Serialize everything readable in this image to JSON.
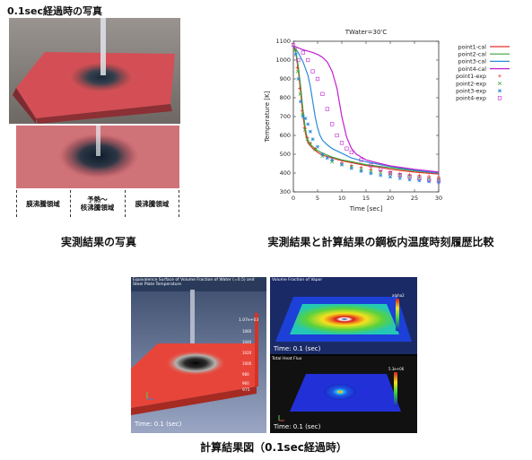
{
  "photo_section": {
    "title": "0.1sec経過時の写真",
    "zones": [
      "膜沸騰領域",
      "予熱～\n核沸騰領域",
      "膜沸騰領域"
    ],
    "caption": "実測結果の写真"
  },
  "chart_section": {
    "caption": "実測結果と計算結果の鋼板内温度時刻履歴比較"
  },
  "chart_data": {
    "type": "line",
    "title": "TWater=30'C",
    "xlabel": "Time [sec]",
    "ylabel": "Temperature [K]",
    "xlim": [
      0,
      30
    ],
    "ylim": [
      300,
      1100
    ],
    "xticks": [
      0,
      5,
      10,
      15,
      20,
      25,
      30
    ],
    "yticks": [
      300,
      400,
      500,
      600,
      700,
      800,
      900,
      1000,
      1100
    ],
    "grid": false,
    "legend_position": "top-right",
    "series": [
      {
        "name": "point1-cal",
        "kind": "line",
        "color": "#e8302a",
        "x": [
          0,
          0.5,
          1,
          1.5,
          2,
          2.5,
          3,
          4,
          5,
          6,
          8,
          10,
          12,
          15,
          18,
          20,
          25,
          30
        ],
        "y": [
          1075,
          1040,
          950,
          830,
          700,
          610,
          560,
          530,
          510,
          495,
          480,
          465,
          455,
          440,
          430,
          420,
          405,
          395
        ]
      },
      {
        "name": "point2-cal",
        "kind": "line",
        "color": "#3aa23a",
        "x": [
          0,
          0.5,
          1,
          1.5,
          2,
          2.5,
          3,
          4,
          5,
          6,
          8,
          10,
          12,
          15,
          18,
          20,
          25,
          30
        ],
        "y": [
          1075,
          1045,
          970,
          860,
          730,
          630,
          570,
          540,
          520,
          505,
          485,
          470,
          460,
          445,
          435,
          428,
          412,
          400
        ]
      },
      {
        "name": "point3-cal",
        "kind": "line",
        "color": "#2b8ad8",
        "x": [
          0,
          1,
          2,
          3,
          3.5,
          4,
          4.5,
          5,
          5.5,
          6,
          7,
          8,
          10,
          12,
          15,
          18,
          20,
          25,
          30
        ],
        "y": [
          1075,
          1040,
          990,
          920,
          860,
          780,
          700,
          640,
          600,
          575,
          550,
          530,
          505,
          480,
          460,
          445,
          435,
          415,
          400
        ]
      },
      {
        "name": "point4-cal",
        "kind": "line",
        "color": "#c21fd1",
        "x": [
          0,
          1,
          2,
          3,
          4,
          5,
          6,
          7,
          8,
          9,
          10,
          11,
          12,
          13,
          15,
          18,
          20,
          25,
          30
        ],
        "y": [
          1075,
          1065,
          1055,
          1048,
          1040,
          1030,
          1015,
          990,
          940,
          850,
          700,
          590,
          530,
          500,
          470,
          450,
          438,
          420,
          405
        ]
      },
      {
        "name": "point1-exp",
        "kind": "marker",
        "marker": "+",
        "color": "#e8302a",
        "x": [
          0.3,
          0.8,
          1.3,
          1.8,
          2.3,
          2.8,
          3.5,
          4.5,
          6,
          8,
          10,
          12,
          14,
          16,
          18,
          20,
          22,
          24,
          26,
          28,
          30
        ],
        "y": [
          1060,
          960,
          850,
          730,
          640,
          590,
          560,
          530,
          500,
          470,
          455,
          440,
          430,
          420,
          412,
          405,
          398,
          392,
          388,
          383,
          378
        ]
      },
      {
        "name": "point2-exp",
        "kind": "marker",
        "marker": "x",
        "color": "#3aa23a",
        "x": [
          0.4,
          0.9,
          1.4,
          1.9,
          2.4,
          2.9,
          3.5,
          4.5,
          6,
          8,
          10,
          12,
          14,
          16,
          18,
          20,
          22,
          24,
          26,
          28,
          30
        ],
        "y": [
          1055,
          940,
          820,
          710,
          630,
          580,
          555,
          525,
          490,
          460,
          445,
          432,
          420,
          410,
          402,
          395,
          388,
          382,
          376,
          370,
          366
        ]
      },
      {
        "name": "point3-exp",
        "kind": "marker",
        "marker": "star",
        "color": "#2b8ad8",
        "x": [
          0.5,
          1,
          1.5,
          2,
          2.5,
          3,
          3.5,
          4,
          5,
          6,
          7,
          8,
          10,
          12,
          14,
          16,
          18,
          20,
          22,
          24,
          26,
          28,
          30
        ],
        "y": [
          1030,
          900,
          780,
          700,
          690,
          660,
          620,
          580,
          540,
          500,
          480,
          470,
          445,
          425,
          410,
          398,
          388,
          380,
          372,
          365,
          360,
          355,
          350
        ]
      },
      {
        "name": "point4-exp",
        "kind": "marker",
        "marker": "square",
        "color": "#c21fd1",
        "x": [
          0,
          1,
          2,
          3,
          4,
          5,
          6,
          7,
          8,
          9,
          10,
          11,
          12,
          14,
          16,
          18,
          20,
          22,
          24,
          26,
          28,
          30
        ],
        "y": [
          1080,
          1000,
          1040,
          1000,
          940,
          900,
          820,
          740,
          660,
          600,
          560,
          530,
          510,
          470,
          440,
          420,
          400,
          390,
          380,
          372,
          365,
          360
        ]
      }
    ]
  },
  "simulation_section": {
    "left_panel": {
      "title": "Equivalence Surface of Volume Fraction of Water (=0.5) and Steel Plate Temperature",
      "colorbar_top": "1.07e+03",
      "colorbar_ticks": [
        "1060",
        "1040",
        "1020",
        "1000",
        "980",
        "960"
      ],
      "colorbar_bottom": "975",
      "time": "Time: 0.1 (sec)"
    },
    "top_right_panel": {
      "title": "Volume Fraction of Vapor",
      "colorbar_label": "alpha2",
      "time": "Time: 0.1 (sec)"
    },
    "bottom_right_panel": {
      "title": "Total Heat Flux",
      "colorbar_label": "5.3e+06",
      "time": "Time: 0.1 (sec)"
    },
    "caption": "計算結果図（0.1sec経過時）"
  }
}
